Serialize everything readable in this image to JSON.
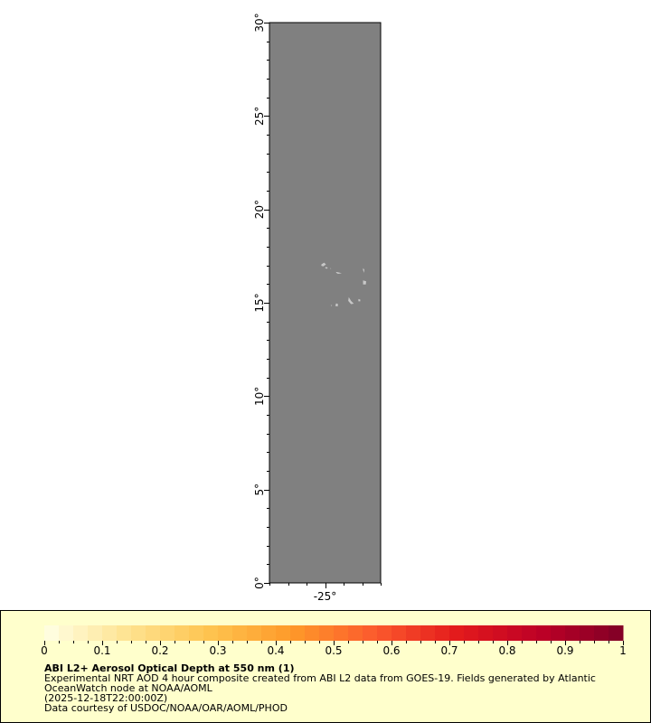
{
  "map": {
    "lat_range": [
      0,
      30
    ],
    "lon_range": [
      -28,
      -22
    ],
    "lat_ticks": [
      0,
      5,
      10,
      15,
      20,
      25,
      30
    ],
    "lat_tick_labels": [
      "0°",
      "5°",
      "10°",
      "15°",
      "20°",
      "25°",
      "30°"
    ],
    "lon_ticks": [
      -25
    ],
    "lon_tick_labels": [
      "-25°"
    ],
    "background_color": "#808080",
    "land_color": "#c8c8c8"
  },
  "legend": {
    "title": "ABI L2+ Aerosol Optical Depth at 550 nm (1)",
    "line1": "Experimental NRT AOD 4 hour composite created from ABI L2 data from GOES-19. Fields generated by Atlantic",
    "line2": "OceanWatch node at NOAA/AOML",
    "line3": "(2025-12-18T22:00:00Z)",
    "line4": "Data courtesy of USDOC/NOAA/OAR/AOML/PHOD",
    "colorbar": {
      "range": [
        0,
        1
      ],
      "tick_labels": [
        "0",
        "0.1",
        "0.2",
        "0.3",
        "0.4",
        "0.5",
        "0.6",
        "0.7",
        "0.8",
        "0.9",
        "1"
      ],
      "colors": [
        "#ffffe5",
        "#fee391",
        "#fec44f",
        "#fe9929",
        "#fc5a2d",
        "#e31a1c",
        "#bd0026",
        "#800026"
      ]
    }
  }
}
